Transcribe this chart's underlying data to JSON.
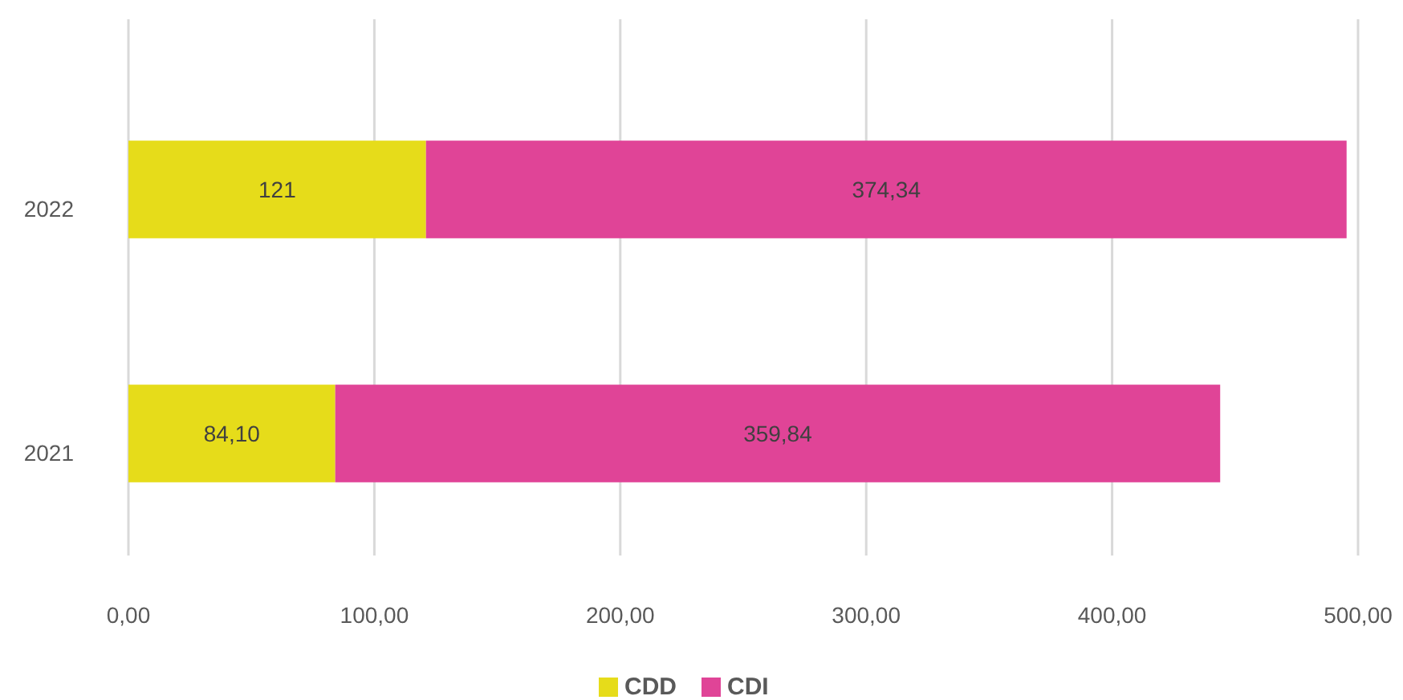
{
  "chart_data": {
    "type": "bar",
    "orientation": "horizontal",
    "stacked": true,
    "categories": [
      "2022",
      "2021"
    ],
    "series": [
      {
        "name": "CDD",
        "color": "#e6dc1a",
        "values": [
          121,
          84.1
        ],
        "value_labels": [
          "121",
          "84,10"
        ]
      },
      {
        "name": "CDI",
        "color": "#e04497",
        "values": [
          374.34,
          359.84
        ],
        "value_labels": [
          "374,34",
          "359,84"
        ]
      }
    ],
    "xlim": [
      0,
      500
    ],
    "xticks": [
      {
        "value": 0,
        "label": "0,00"
      },
      {
        "value": 100,
        "label": "100,00"
      },
      {
        "value": 200,
        "label": "200,00"
      },
      {
        "value": 300,
        "label": "300,00"
      },
      {
        "value": 400,
        "label": "400,00"
      },
      {
        "value": 500,
        "label": "500,00"
      }
    ],
    "grid": "x",
    "legend": "bottom"
  }
}
